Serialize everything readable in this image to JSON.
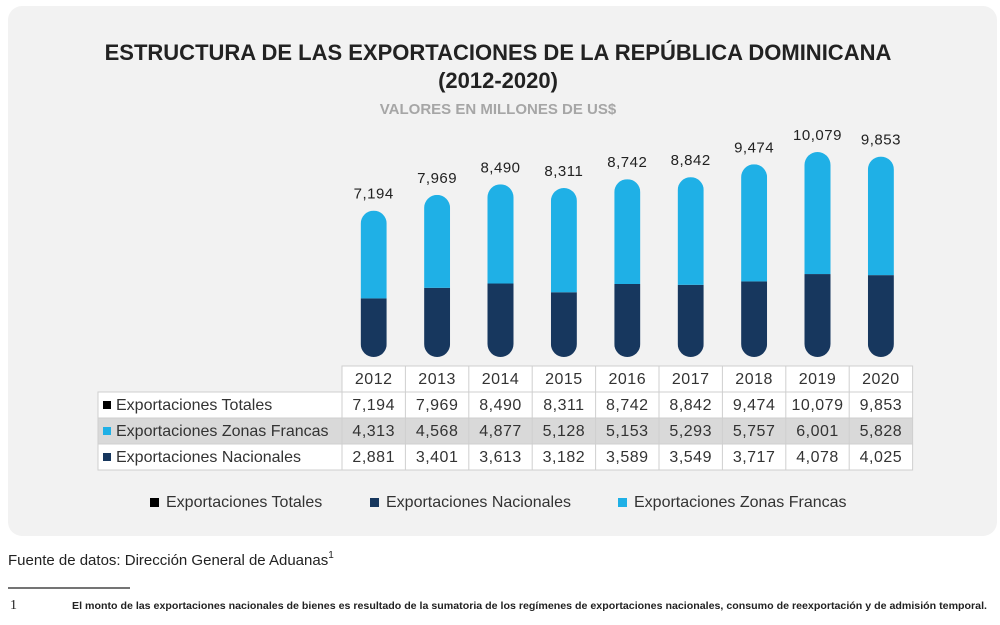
{
  "chart_data": {
    "type": "bar",
    "stacked": true,
    "title": "ESTRUCTURA DE LAS EXPORTACIONES DE LA REPÚBLICA DOMINICANA",
    "title_line2": "(2012-2020)",
    "subtitle": "VALORES EN MILLONES DE US$",
    "categories": [
      "2012",
      "2013",
      "2014",
      "2015",
      "2016",
      "2017",
      "2018",
      "2019",
      "2020"
    ],
    "series": [
      {
        "name": "Exportaciones Totales",
        "color": "#000000",
        "role": "total",
        "values": [
          7194,
          7969,
          8490,
          8311,
          8742,
          8842,
          9474,
          10079,
          9853
        ],
        "value_labels": [
          "7,194",
          "7,969",
          "8,490",
          "8,311",
          "8,742",
          "8,842",
          "9,474",
          "10,079",
          "9,853"
        ]
      },
      {
        "name": "Exportaciones Zonas Francas",
        "color": "#1fb0e6",
        "role": "top",
        "values": [
          4313,
          4568,
          4877,
          5128,
          5153,
          5293,
          5757,
          6001,
          5828
        ],
        "value_labels": [
          "4,313",
          "4,568",
          "4,877",
          "5,128",
          "5,153",
          "5,293",
          "5,757",
          "6,001",
          "5,828"
        ]
      },
      {
        "name": "Exportaciones Nacionales",
        "color": "#17375e",
        "role": "bottom",
        "values": [
          2881,
          3401,
          3613,
          3182,
          3589,
          3549,
          3717,
          4078,
          4025
        ],
        "value_labels": [
          "2,881",
          "3,401",
          "3,613",
          "3,182",
          "3,589",
          "3,549",
          "3,717",
          "4,078",
          "4,025"
        ]
      }
    ],
    "legend_order": [
      0,
      2,
      1
    ],
    "source": "Fuente de datos: Dirección General de Aduanas",
    "source_ref": "1",
    "footnote": {
      "number": "1",
      "text": "El monto de las exportaciones nacionales de bienes es resultado de la sumatoria de los regímenes de exportaciones nacionales, consumo de reexportación y de admisión temporal."
    }
  }
}
